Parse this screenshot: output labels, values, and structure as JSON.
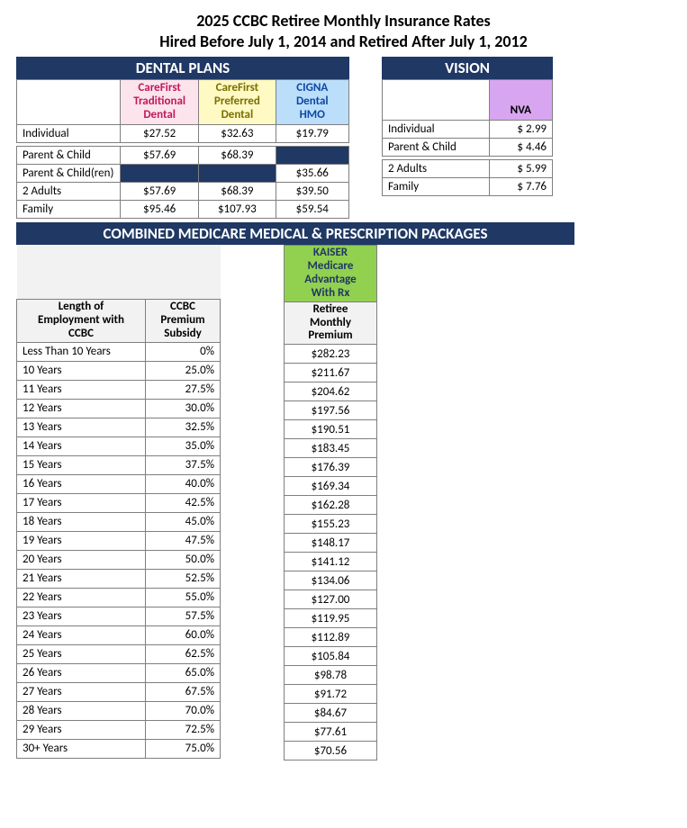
{
  "title_line1": "2025 CCBC Retiree Monthly Insurance Rates",
  "title_line2": "Hired Before July 1, 2014 and Retired After July 1, 2012",
  "dental": {
    "header": "DENTAL PLANS",
    "columns": [
      {
        "label": "CareFirst Traditional Dental",
        "bg": "#fce4ec",
        "fg": "#c2185b"
      },
      {
        "label": "CareFirst Preferred Dental",
        "bg": "#fff9c4",
        "fg": "#7a6f00"
      },
      {
        "label": "CIGNA Dental HMO",
        "bg": "#bbdefb",
        "fg": "#0d47a1"
      }
    ],
    "rows": [
      {
        "label": "Individual",
        "vals": [
          "$27.52",
          "$32.63",
          "$19.79"
        ]
      },
      {
        "gap": true
      },
      {
        "label": "Parent & Child",
        "vals": [
          "$57.69",
          "$68.39",
          null
        ]
      },
      {
        "label": "Parent & Child(ren)",
        "vals": [
          null,
          null,
          "$35.66"
        ]
      },
      {
        "label": "2 Adults",
        "vals": [
          "$57.69",
          "$68.39",
          "$39.50"
        ]
      },
      {
        "label": "Family",
        "vals": [
          "$95.46",
          "$107.93",
          "$59.54"
        ]
      }
    ]
  },
  "vision": {
    "header": "VISION",
    "col": {
      "label": "NVA",
      "bg": "#d8a6f0",
      "fg": "#000"
    },
    "rows": [
      {
        "label": "Individual",
        "val": "$ 2.99"
      },
      {
        "label": "Parent & Child",
        "val": "$ 4.46"
      },
      {
        "gap": true
      },
      {
        "label": "2 Adults",
        "val": "$ 5.99"
      },
      {
        "label": "Family",
        "val": "$ 7.76"
      }
    ]
  },
  "combined_header": "COMBINED MEDICARE MEDICAL & PRESCRIPTION PACKAGES",
  "subsidy": {
    "col1": "Length of Employment with CCBC",
    "col2": "CCBC Premium Subsidy",
    "rows": [
      [
        "Less Than 10 Years",
        "0%"
      ],
      [
        "10 Years",
        "25.0%"
      ],
      [
        "11 Years",
        "27.5%"
      ],
      [
        "12 Years",
        "30.0%"
      ],
      [
        "13 Years",
        "32.5%"
      ],
      [
        "14 Years",
        "35.0%"
      ],
      [
        "15 Years",
        "37.5%"
      ],
      [
        "16 Years",
        "40.0%"
      ],
      [
        "17 Years",
        "42.5%"
      ],
      [
        "18 Years",
        "45.0%"
      ],
      [
        "19 Years",
        "47.5%"
      ],
      [
        "20 Years",
        "50.0%"
      ],
      [
        "21 Years",
        "52.5%"
      ],
      [
        "22 Years",
        "55.0%"
      ],
      [
        "23 Years",
        "57.5%"
      ],
      [
        "24 Years",
        "60.0%"
      ],
      [
        "25 Years",
        "62.5%"
      ],
      [
        "26 Years",
        "65.0%"
      ],
      [
        "27 Years",
        "67.5%"
      ],
      [
        "28 Years",
        "70.0%"
      ],
      [
        "29 Years",
        "72.5%"
      ],
      [
        "30+ Years",
        "75.0%"
      ]
    ]
  },
  "premium": {
    "topcol": "KAISER Medicare Advantage With Rx",
    "subcol": "Retiree Monthly Premium",
    "vals": [
      "$282.23",
      "$211.67",
      "$204.62",
      "$197.56",
      "$190.51",
      "$183.45",
      "$176.39",
      "$169.34",
      "$162.28",
      "$155.23",
      "$148.17",
      "$141.12",
      "$134.06",
      "$127.00",
      "$119.95",
      "$112.89",
      "$105.84",
      "$98.78",
      "$91.72",
      "$84.67",
      "$77.61",
      "$70.56"
    ]
  },
  "colors": {
    "navy": "#1f3864",
    "border": "#7f7f7f",
    "grey_hdr": "#f2f2f2",
    "kaiser_green": "#92d050"
  }
}
